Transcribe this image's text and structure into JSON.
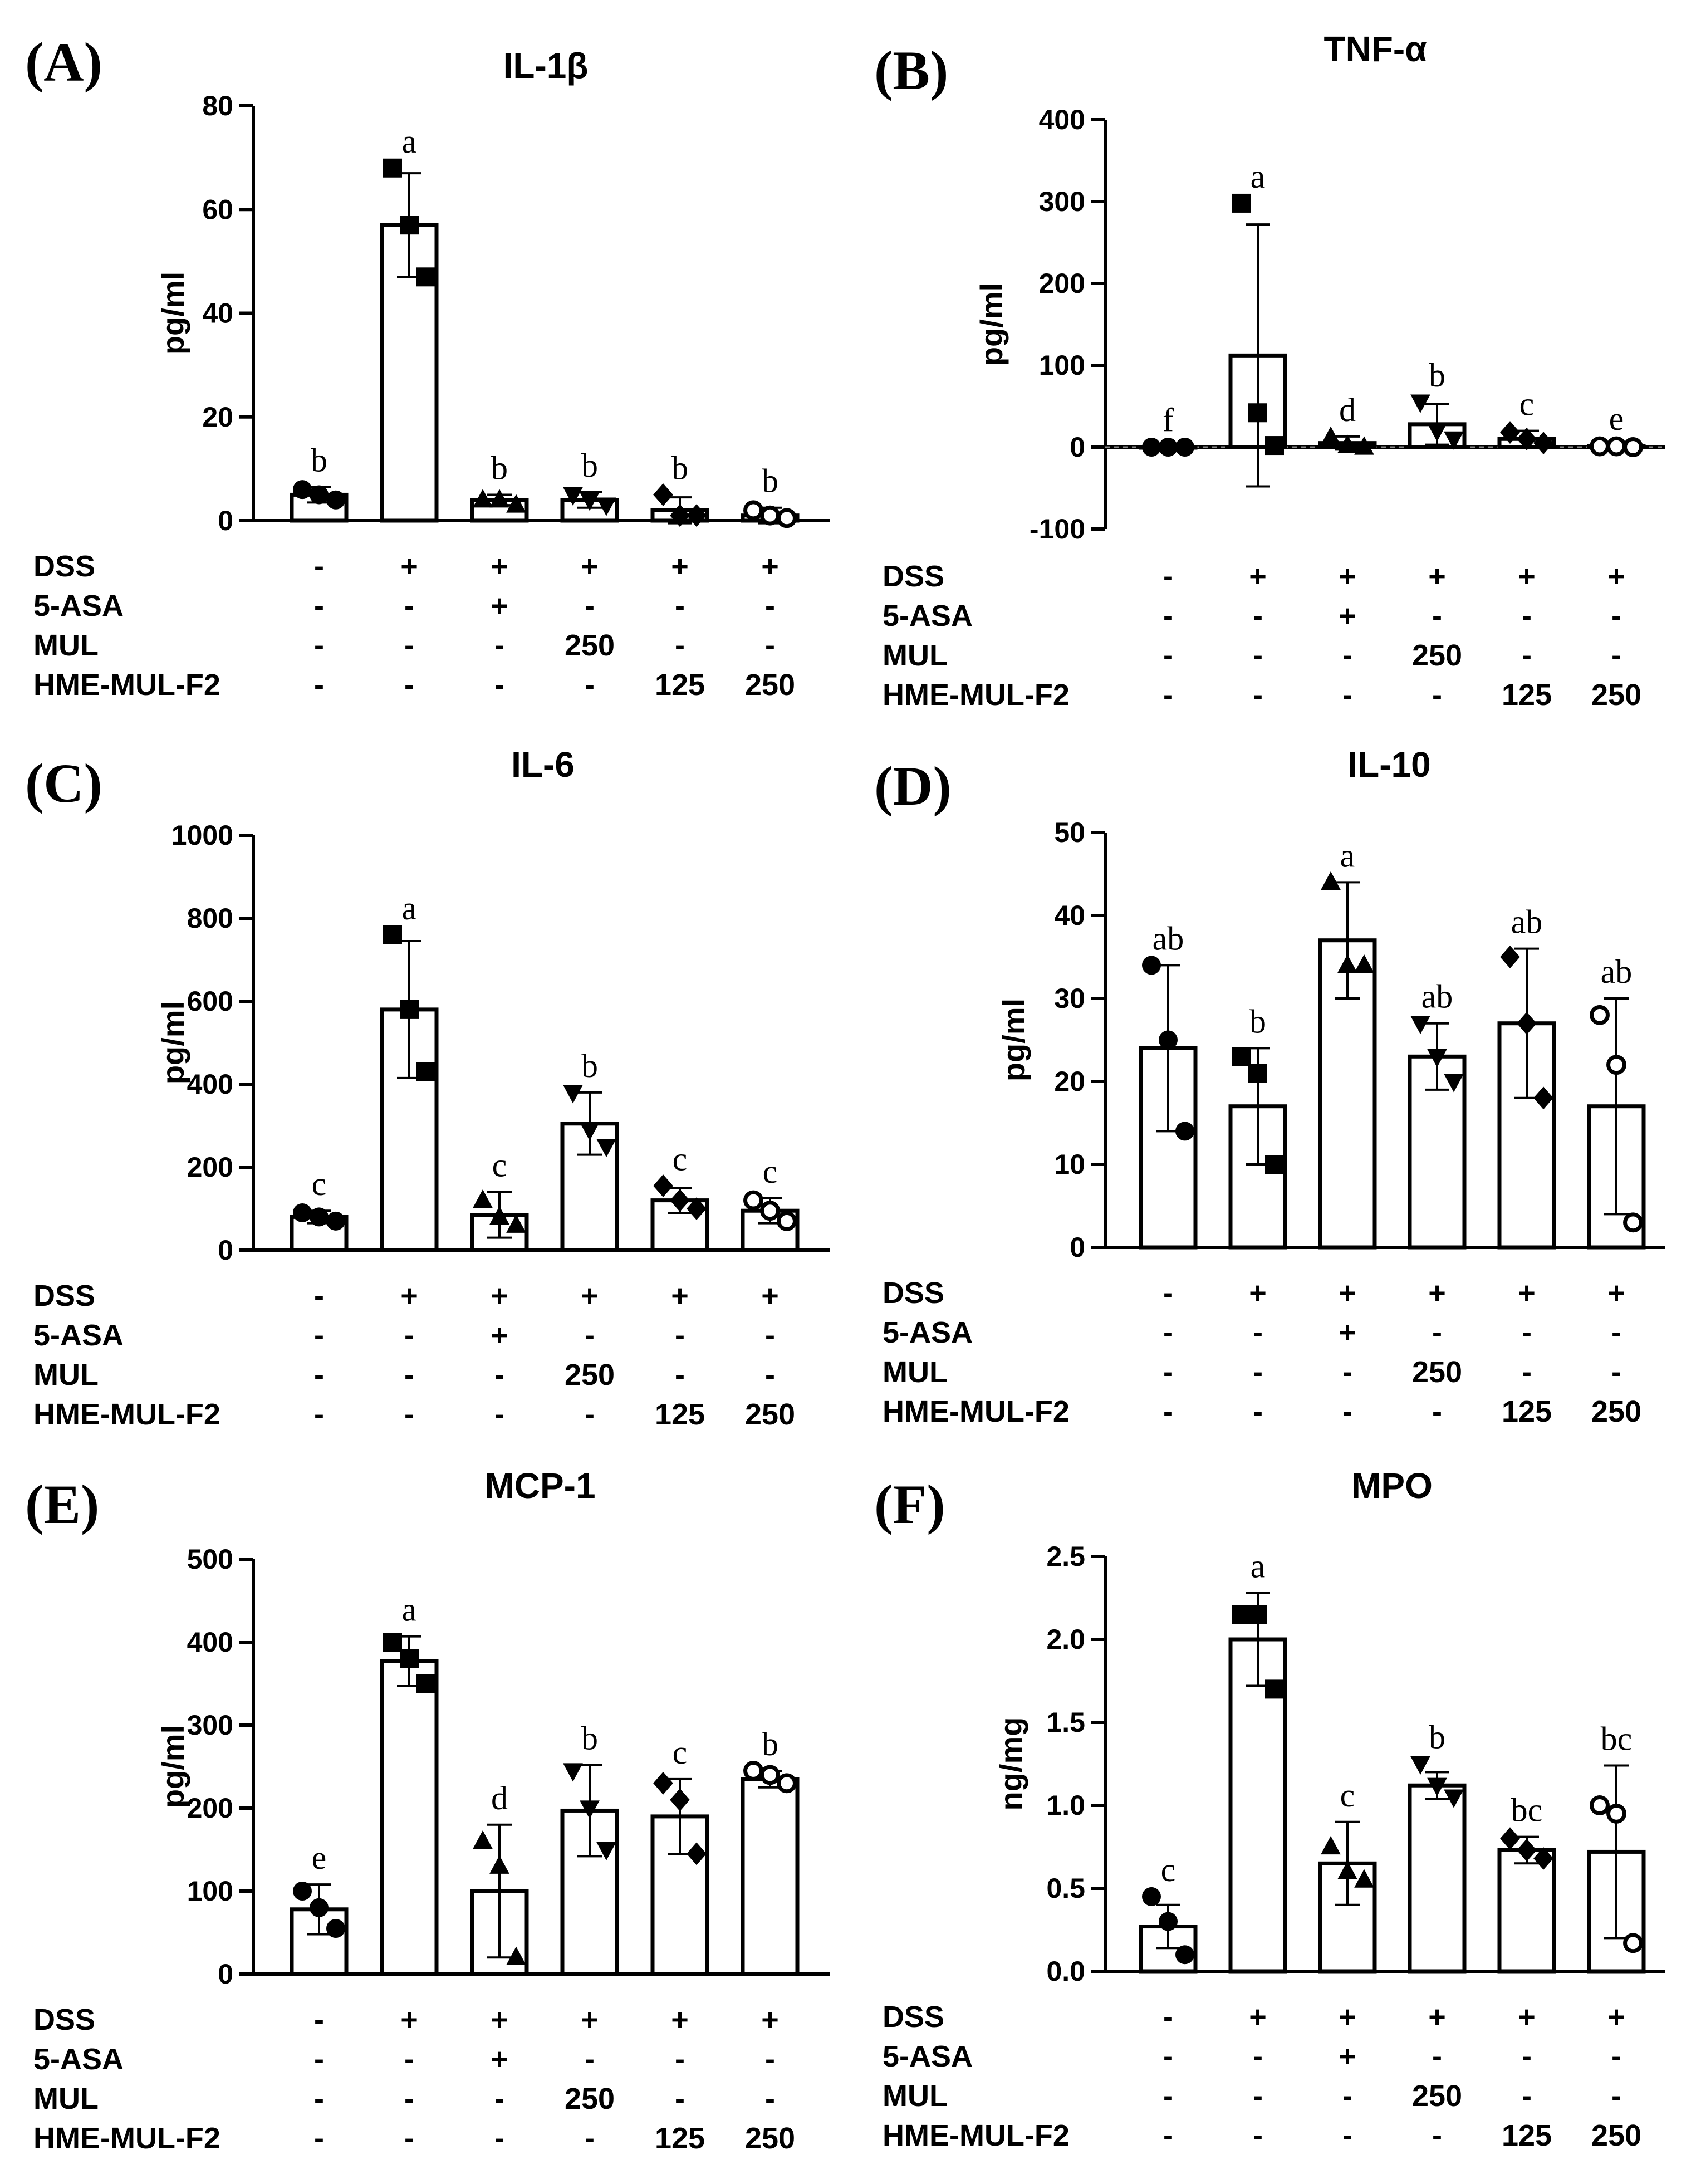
{
  "treatment": {
    "rows": [
      {
        "name": "DSS",
        "cells": [
          "-",
          "+",
          "+",
          "+",
          "+",
          "+"
        ]
      },
      {
        "name": "5-ASA",
        "cells": [
          "-",
          "-",
          "+",
          "-",
          "-",
          "-"
        ]
      },
      {
        "name": "MUL",
        "cells": [
          "-",
          "-",
          "-",
          "250",
          "-",
          "-"
        ]
      },
      {
        "name": "HME-MUL-F2",
        "cells": [
          "-",
          "-",
          "-",
          "-",
          "125",
          "250"
        ]
      }
    ]
  },
  "chart_data": [
    {
      "panel": "(A)",
      "type": "bar",
      "title": "IL-1β",
      "ylabel": "pg/ml",
      "ylim": [
        0,
        80
      ],
      "yticks": [
        0,
        20,
        40,
        60,
        80
      ],
      "categories": [
        "Control",
        "DSS",
        "DSS+5-ASA",
        "DSS+MUL 250",
        "DSS+HME-MUL-F2 125",
        "DSS+HME-MUL-F2 250"
      ],
      "values": [
        5,
        57,
        4,
        4,
        2,
        1
      ],
      "errors": [
        1.5,
        10,
        1,
        1.5,
        2.5,
        1.5
      ],
      "points": [
        [
          6,
          5,
          4
        ],
        [
          68,
          57,
          47
        ],
        [
          4,
          4,
          3
        ],
        [
          5,
          4,
          3
        ],
        [
          5,
          1,
          1
        ],
        [
          2,
          1,
          0.5
        ]
      ],
      "markers": [
        "circle",
        "square",
        "triangle-up",
        "triangle-down",
        "diamond",
        "open-circle"
      ],
      "significance": [
        "b",
        "a",
        "b",
        "b",
        "b",
        "b"
      ]
    },
    {
      "panel": "(B)",
      "type": "bar",
      "title": "TNF-α",
      "ylabel": "pg/ml",
      "ylim": [
        -100,
        400
      ],
      "yticks": [
        -100,
        0,
        100,
        200,
        300,
        400
      ],
      "categories": [
        "Control",
        "DSS",
        "DSS+5-ASA",
        "DSS+MUL 250",
        "DSS+HME-MUL-F2 125",
        "DSS+HME-MUL-F2 250"
      ],
      "values": [
        0,
        112,
        5,
        28,
        10,
        1
      ],
      "errors": [
        0.5,
        160,
        8,
        25,
        10,
        1
      ],
      "points": [
        [
          0,
          0,
          0
        ],
        [
          298,
          42,
          2
        ],
        [
          12,
          2,
          0
        ],
        [
          55,
          20,
          10
        ],
        [
          18,
          10,
          5
        ],
        [
          1,
          1,
          0
        ]
      ],
      "markers": [
        "circle",
        "square",
        "triangle-up",
        "triangle-down",
        "diamond",
        "open-circle"
      ],
      "significance": [
        "f",
        "a",
        "d",
        "b",
        "c",
        "e"
      ]
    },
    {
      "panel": "(C)",
      "type": "bar",
      "title": "IL-6",
      "ylabel": "pg/ml",
      "ylim": [
        0,
        1000
      ],
      "yticks": [
        0,
        200,
        400,
        600,
        800,
        1000
      ],
      "categories": [
        "Control",
        "DSS",
        "DSS+5-ASA",
        "DSS+MUL 250",
        "DSS+HME-MUL-F2 125",
        "DSS+HME-MUL-F2 250"
      ],
      "values": [
        80,
        580,
        85,
        305,
        120,
        95
      ],
      "errors": [
        15,
        165,
        55,
        75,
        30,
        30
      ],
      "points": [
        [
          90,
          80,
          70
        ],
        [
          760,
          580,
          430
        ],
        [
          120,
          80,
          60
        ],
        [
          380,
          290,
          250
        ],
        [
          155,
          120,
          100
        ],
        [
          120,
          95,
          70
        ]
      ],
      "markers": [
        "circle",
        "square",
        "triangle-up",
        "triangle-down",
        "diamond",
        "open-circle"
      ],
      "significance": [
        "c",
        "a",
        "c",
        "b",
        "c",
        "c"
      ]
    },
    {
      "panel": "(D)",
      "type": "bar",
      "title": "IL-10",
      "ylabel": "pg/ml",
      "ylim": [
        0,
        50
      ],
      "yticks": [
        0,
        10,
        20,
        30,
        40,
        50
      ],
      "categories": [
        "Control",
        "DSS",
        "DSS+5-ASA",
        "DSS+MUL 250",
        "DSS+HME-MUL-F2 125",
        "DSS+HME-MUL-F2 250"
      ],
      "values": [
        24,
        17,
        37,
        23,
        27,
        17
      ],
      "errors": [
        10,
        7,
        7,
        4,
        9,
        13
      ],
      "points": [
        [
          34,
          25,
          14
        ],
        [
          23,
          21,
          10
        ],
        [
          44,
          34,
          34
        ],
        [
          27,
          23,
          20
        ],
        [
          35,
          27,
          18
        ],
        [
          28,
          22,
          3
        ]
      ],
      "markers": [
        "circle",
        "square",
        "triangle-up",
        "triangle-down",
        "diamond",
        "open-circle"
      ],
      "significance": [
        "ab",
        "b",
        "a",
        "ab",
        "ab",
        "ab"
      ]
    },
    {
      "panel": "(E)",
      "type": "bar",
      "title": "MCP-1",
      "ylabel": "pg/ml",
      "ylim": [
        0,
        500
      ],
      "yticks": [
        0,
        100,
        200,
        300,
        400,
        500
      ],
      "categories": [
        "Control",
        "DSS",
        "DSS+5-ASA",
        "DSS+MUL 250",
        "DSS+HME-MUL-F2 125",
        "DSS+HME-MUL-F2 250"
      ],
      "values": [
        78,
        377,
        100,
        197,
        190,
        235
      ],
      "errors": [
        30,
        30,
        80,
        55,
        45,
        10
      ],
      "points": [
        [
          100,
          80,
          55
        ],
        [
          400,
          380,
          350
        ],
        [
          160,
          130,
          20
        ],
        [
          245,
          200,
          150
        ],
        [
          230,
          210,
          145
        ],
        [
          245,
          240,
          230
        ]
      ],
      "markers": [
        "circle",
        "square",
        "triangle-up",
        "triangle-down",
        "diamond",
        "open-circle"
      ],
      "significance": [
        "e",
        "a",
        "d",
        "b",
        "c",
        "b"
      ]
    },
    {
      "panel": "(F)",
      "type": "bar",
      "title": "MPO",
      "ylabel": "ng/mg",
      "ylim": [
        0,
        2.5
      ],
      "yticks": [
        0.0,
        0.5,
        1.0,
        1.5,
        2.0,
        2.5
      ],
      "ytick_labels": [
        "0.0",
        "0.5",
        "1.0",
        "1.5",
        "2.0",
        "2.5"
      ],
      "categories": [
        "Control",
        "DSS",
        "DSS+5-ASA",
        "DSS+MUL 250",
        "DSS+HME-MUL-F2 125",
        "DSS+HME-MUL-F2 250"
      ],
      "values": [
        0.27,
        2.0,
        0.65,
        1.12,
        0.73,
        0.72
      ],
      "errors": [
        0.13,
        0.28,
        0.25,
        0.08,
        0.08,
        0.52
      ],
      "points": [
        [
          0.45,
          0.3,
          0.1
        ],
        [
          2.15,
          2.15,
          1.7
        ],
        [
          0.75,
          0.6,
          0.55
        ],
        [
          1.25,
          1.12,
          1.05
        ],
        [
          0.8,
          0.73,
          0.68
        ],
        [
          1.0,
          0.95,
          0.17
        ]
      ],
      "markers": [
        "circle",
        "square",
        "triangle-up",
        "triangle-down",
        "diamond",
        "open-circle"
      ],
      "significance": [
        "c",
        "a",
        "c",
        "b",
        "bc",
        "bc"
      ]
    }
  ]
}
